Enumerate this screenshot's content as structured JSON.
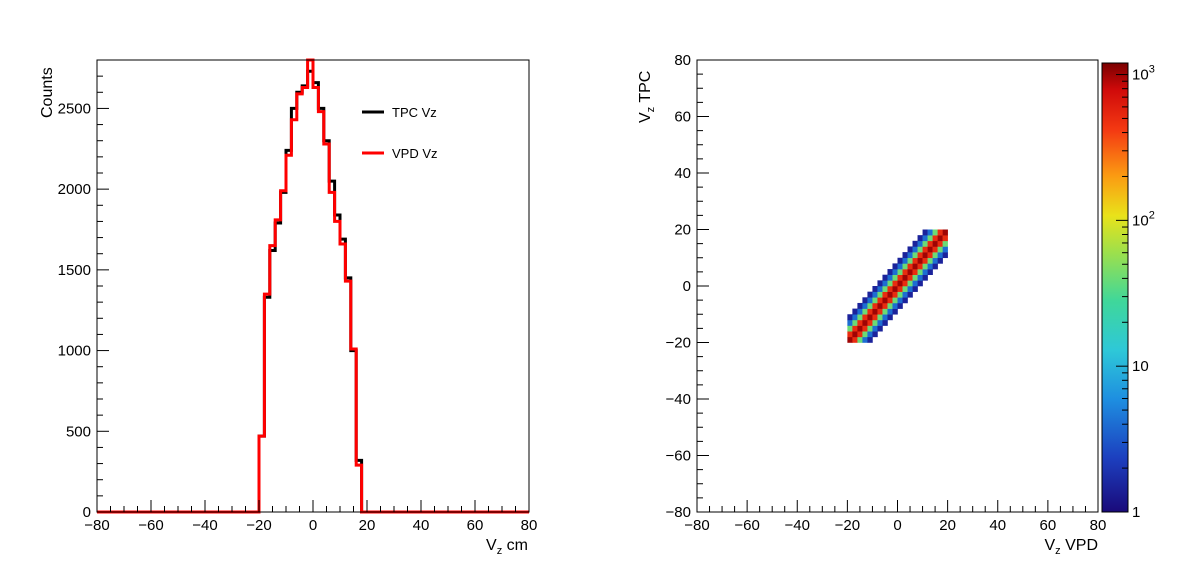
{
  "chart_data": [
    {
      "type": "histogram",
      "xlabel": "V",
      "xlabel_sub": "z",
      "xlabel_suffix": " cm",
      "ylabel": "Counts",
      "xlim": [
        -80,
        80
      ],
      "ylim": [
        0,
        2800
      ],
      "x_ticks": [
        "−80",
        "−60",
        "−40",
        "−20",
        "0",
        "20",
        "40",
        "60",
        "80"
      ],
      "x_tick_values": [
        -80,
        -60,
        -40,
        -20,
        0,
        20,
        40,
        60,
        80
      ],
      "y_ticks": [
        "0",
        "500",
        "1000",
        "1500",
        "2000",
        "2500"
      ],
      "y_tick_values": [
        0,
        500,
        1000,
        1500,
        2000,
        2500
      ],
      "legend_position": "top-right",
      "bin_width": 2,
      "bin_edges": [
        -22,
        -20,
        -18,
        -16,
        -14,
        -12,
        -10,
        -8,
        -6,
        -4,
        -2,
        0,
        2,
        4,
        6,
        8,
        10,
        12,
        14,
        16,
        18,
        20,
        22
      ],
      "series": [
        {
          "name": "TPC Vz",
          "color": "#000000",
          "values": [
            0,
            470,
            1330,
            1620,
            1790,
            1980,
            2240,
            2500,
            2600,
            2640,
            2730,
            2660,
            2500,
            2300,
            2050,
            1840,
            1690,
            1450,
            1000,
            320,
            0,
            0
          ]
        },
        {
          "name": "VPD Vz",
          "color": "#ff0000",
          "values": [
            0,
            470,
            1350,
            1650,
            1810,
            1990,
            2210,
            2430,
            2590,
            2630,
            2800,
            2630,
            2480,
            2280,
            1980,
            1800,
            1660,
            1430,
            1010,
            290,
            0,
            0
          ]
        }
      ]
    },
    {
      "type": "heatmap",
      "xlabel": "V",
      "xlabel_sub": "z",
      "xlabel_suffix": " VPD",
      "ylabel": "V",
      "ylabel_sub": "z",
      "ylabel_suffix": " TPC",
      "xlim": [
        -80,
        80
      ],
      "ylim": [
        -80,
        80
      ],
      "x_ticks": [
        "−80",
        "−60",
        "−40",
        "−20",
        "0",
        "20",
        "40",
        "60",
        "80"
      ],
      "x_tick_values": [
        -80,
        -60,
        -40,
        -20,
        0,
        20,
        40,
        60,
        80
      ],
      "y_ticks": [
        "−80",
        "−60",
        "−40",
        "−20",
        "0",
        "20",
        "40",
        "60",
        "80"
      ],
      "y_tick_values": [
        -80,
        -60,
        -40,
        -20,
        0,
        20,
        40,
        60,
        80
      ],
      "z_scale": "log",
      "zlim": [
        1,
        1200
      ],
      "colorbar_ticks": [
        {
          "value": 1,
          "label": "1"
        },
        {
          "value": 10,
          "label": "10"
        },
        {
          "value": 100,
          "label": "10",
          "sup": "2"
        },
        {
          "value": 1000,
          "label": "10",
          "sup": "3"
        }
      ],
      "bin_width": 2,
      "region": {
        "x_range": [
          -20,
          20
        ],
        "y_range": [
          -20,
          20
        ],
        "correlation": "y = x"
      },
      "band_counts_by_offset": [
        1000,
        500,
        40,
        4,
        1.5
      ]
    }
  ]
}
